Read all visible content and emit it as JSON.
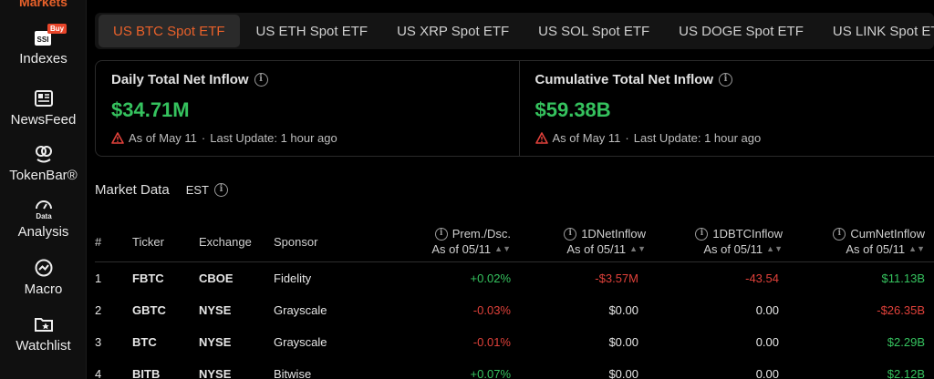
{
  "sidebar": {
    "top_label": "Markets",
    "buy_badge": "Buy",
    "items": [
      {
        "label": "Indexes",
        "icon": "indexes-icon"
      },
      {
        "label": "NewsFeed",
        "icon": "newsfeed-icon"
      },
      {
        "label": "TokenBar®",
        "icon": "tokenbar-icon"
      },
      {
        "label": "Analysis",
        "icon": "data-analysis-icon"
      },
      {
        "label": "Macro",
        "icon": "macro-icon"
      },
      {
        "label": "Watchlist",
        "icon": "watchlist-icon"
      }
    ]
  },
  "tabs": [
    {
      "label": "US BTC Spot ETF",
      "active": true
    },
    {
      "label": "US ETH Spot ETF"
    },
    {
      "label": "US XRP Spot ETF"
    },
    {
      "label": "US SOL Spot ETF"
    },
    {
      "label": "US DOGE Spot ETF"
    },
    {
      "label": "US LINK Spot ETF"
    }
  ],
  "cards": {
    "daily": {
      "title": "Daily Total Net Inflow",
      "value": "$34.71M",
      "as_of": "As of May 11",
      "dot": "·",
      "update": "Last Update: 1 hour ago"
    },
    "cumulative": {
      "title": "Cumulative Total Net Inflow",
      "value": "$59.38B",
      "as_of": "As of May 11",
      "dot": "·",
      "update": "Last Update: 1 hour ago"
    }
  },
  "market": {
    "title": "Market Data",
    "timezone": "EST"
  },
  "table": {
    "headers": {
      "num": "#",
      "ticker": "Ticker",
      "exchange": "Exchange",
      "sponsor": "Sponsor",
      "prem": "Prem./Dsc.",
      "prem_sub": "As of 05/11",
      "net": "1DNetInflow",
      "net_sub": "As of 05/11",
      "btc": "1DBTCInflow",
      "btc_sub": "As of 05/11",
      "cum": "CumNetInflow",
      "cum_sub": "As of 05/11"
    },
    "rows": [
      {
        "num": "1",
        "ticker": "FBTC",
        "exchange": "CBOE",
        "sponsor": "Fidelity",
        "prem": "+0.02%",
        "net": "-$3.57M",
        "btc": "-43.54",
        "cum": "$11.13B"
      },
      {
        "num": "2",
        "ticker": "GBTC",
        "exchange": "NYSE",
        "sponsor": "Grayscale",
        "prem": "-0.03%",
        "net": "$0.00",
        "btc": "0.00",
        "cum": "-$26.35B"
      },
      {
        "num": "3",
        "ticker": "BTC",
        "exchange": "NYSE",
        "sponsor": "Grayscale",
        "prem": "-0.01%",
        "net": "$0.00",
        "btc": "0.00",
        "cum": "$2.29B"
      },
      {
        "num": "4",
        "ticker": "BITB",
        "exchange": "NYSE",
        "sponsor": "Bitwise",
        "prem": "+0.07%",
        "net": "$0.00",
        "btc": "0.00",
        "cum": "$2.12B"
      }
    ]
  },
  "colors": {
    "accent": "#e8612a",
    "positive": "#35c25e",
    "negative": "#e0413a",
    "warning": "#e0413a"
  }
}
